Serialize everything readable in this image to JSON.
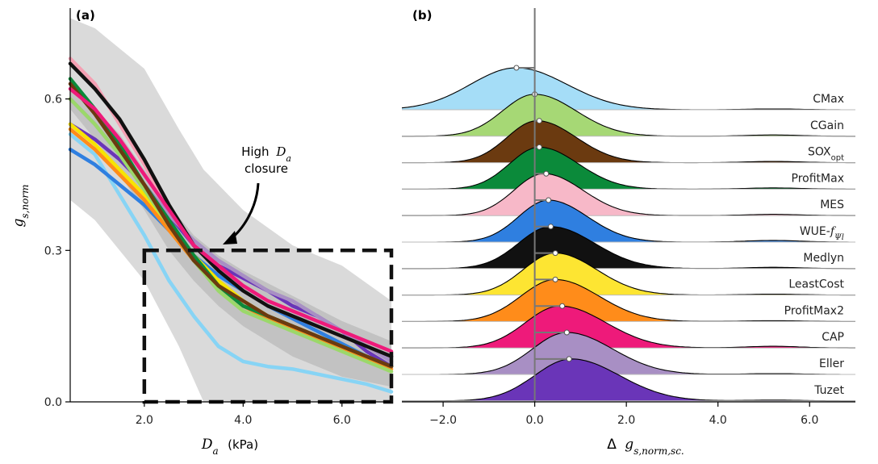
{
  "chart_data": [
    {
      "type": "line",
      "panel_label": "(a)",
      "xlabel": "D",
      "xlabel_sub": "a",
      "xlabel_unit": "(kPa)",
      "ylabel": "g",
      "ylabel_sub": "s,norm",
      "xlim": [
        0.5,
        7.0
      ],
      "ylim": [
        0.0,
        0.78
      ],
      "xticks": [
        2.0,
        4.0,
        6.0
      ],
      "xtick_labels": [
        "2.0",
        "4.0",
        "6.0"
      ],
      "yticks": [
        0.0,
        0.3,
        0.6
      ],
      "ytick_labels": [
        "0.0",
        "0.3",
        "0.6"
      ],
      "annotation": {
        "line1": "High",
        "var": "D",
        "var_sub": "a",
        "line2": "closure"
      },
      "box": {
        "x0": 2.0,
        "x1": 7.0,
        "y0": 0.0,
        "y1": 0.3
      },
      "bands": [
        {
          "color": "#d3d3d3",
          "x": [
            0.5,
            1.0,
            2.0,
            2.7,
            3.2,
            4.0,
            5.0,
            6.0,
            7.0
          ],
          "upper": [
            0.76,
            0.74,
            0.66,
            0.54,
            0.46,
            0.38,
            0.31,
            0.27,
            0.2
          ],
          "lower": [
            0.4,
            0.36,
            0.24,
            0.11,
            0.0,
            0.0,
            0.0,
            0.0,
            0.0
          ]
        },
        {
          "color": "#bdbdbd",
          "x": [
            0.5,
            1.0,
            1.5,
            2.0,
            2.5,
            3.0,
            3.5,
            4.0,
            5.0,
            6.0,
            7.0
          ],
          "upper": [
            0.64,
            0.58,
            0.53,
            0.46,
            0.39,
            0.33,
            0.29,
            0.26,
            0.21,
            0.16,
            0.12
          ],
          "lower": [
            0.58,
            0.52,
            0.45,
            0.38,
            0.3,
            0.24,
            0.19,
            0.15,
            0.09,
            0.05,
            0.03
          ]
        }
      ],
      "x": [
        0.5,
        1.0,
        1.5,
        2.0,
        2.5,
        3.0,
        3.5,
        4.0,
        4.5,
        5.0,
        5.5,
        6.0,
        6.5,
        7.0
      ],
      "series": [
        {
          "color": "#87d4f5",
          "values": [
            0.53,
            0.49,
            0.41,
            0.33,
            0.24,
            0.17,
            0.11,
            0.08,
            0.07,
            0.065,
            0.055,
            0.045,
            0.035,
            0.02
          ]
        },
        {
          "color": "#2f7fe0",
          "values": [
            0.5,
            0.47,
            0.43,
            0.39,
            0.34,
            0.29,
            0.25,
            0.22,
            0.19,
            0.165,
            0.14,
            0.115,
            0.09,
            0.07
          ]
        },
        {
          "color": "#6a35b8",
          "values": [
            0.55,
            0.52,
            0.48,
            0.43,
            0.37,
            0.31,
            0.27,
            0.245,
            0.22,
            0.19,
            0.17,
            0.14,
            0.1,
            0.07
          ]
        },
        {
          "color": "#a88fc4",
          "values": [
            0.6,
            0.55,
            0.49,
            0.43,
            0.37,
            0.32,
            0.28,
            0.25,
            0.22,
            0.2,
            0.17,
            0.14,
            0.11,
            0.08
          ]
        },
        {
          "color": "#f5a0b3",
          "values": [
            0.68,
            0.63,
            0.55,
            0.47,
            0.38,
            0.31,
            0.26,
            0.22,
            0.19,
            0.17,
            0.15,
            0.13,
            0.11,
            0.09
          ]
        },
        {
          "color": "#f7e400",
          "values": [
            0.55,
            0.51,
            0.46,
            0.41,
            0.35,
            0.29,
            0.24,
            0.2,
            0.17,
            0.15,
            0.13,
            0.11,
            0.09,
            0.07
          ]
        },
        {
          "color": "#ff8c1a",
          "values": [
            0.54,
            0.5,
            0.45,
            0.4,
            0.34,
            0.28,
            0.23,
            0.19,
            0.165,
            0.145,
            0.125,
            0.105,
            0.085,
            0.065
          ]
        },
        {
          "color": "#9bd86a",
          "values": [
            0.6,
            0.55,
            0.49,
            0.42,
            0.35,
            0.28,
            0.22,
            0.18,
            0.16,
            0.14,
            0.12,
            0.1,
            0.08,
            0.06
          ]
        },
        {
          "color": "#0b8a3a",
          "values": [
            0.64,
            0.58,
            0.51,
            0.43,
            0.36,
            0.29,
            0.23,
            0.19,
            0.17,
            0.15,
            0.13,
            0.11,
            0.09,
            0.07
          ]
        },
        {
          "color": "#6b3a10",
          "values": [
            0.63,
            0.57,
            0.5,
            0.43,
            0.35,
            0.28,
            0.23,
            0.2,
            0.17,
            0.15,
            0.13,
            0.11,
            0.09,
            0.07
          ]
        },
        {
          "color": "#111111",
          "values": [
            0.67,
            0.62,
            0.56,
            0.48,
            0.39,
            0.31,
            0.26,
            0.22,
            0.19,
            0.17,
            0.15,
            0.13,
            0.11,
            0.09
          ]
        },
        {
          "color": "#ee1a7a",
          "values": [
            0.62,
            0.58,
            0.52,
            0.45,
            0.38,
            0.31,
            0.27,
            0.23,
            0.2,
            0.18,
            0.16,
            0.14,
            0.12,
            0.1
          ]
        }
      ]
    },
    {
      "type": "ridgeline",
      "panel_label": "(b)",
      "xlabel": "Δ",
      "xlabel_var": "g",
      "xlabel_sub": "s,norm,sc.",
      "xlim": [
        -2.9,
        7.0
      ],
      "xticks": [
        -2.0,
        0.0,
        2.0,
        4.0,
        6.0
      ],
      "xtick_labels": [
        "−2.0",
        "0.0",
        "2.0",
        "4.0",
        "6.0"
      ],
      "zero_line": 0.0,
      "ridges": [
        {
          "label": "CMax",
          "color": "#a5ddf7",
          "median": -0.4,
          "mode": -0.4,
          "sd_left": 1.0,
          "sd_right": 1.1,
          "tail": 0.02
        },
        {
          "label": "CGain",
          "color": "#a6d875",
          "median": 0.0,
          "mode": 0.0,
          "sd_left": 0.7,
          "sd_right": 0.9,
          "tail": 0.03
        },
        {
          "label": "SOX",
          "label_sub": "opt",
          "color": "#6b3a10",
          "median": 0.1,
          "mode": 0.05,
          "sd_left": 0.65,
          "sd_right": 0.85,
          "tail": 0.03
        },
        {
          "label": "ProfitMax",
          "color": "#0b8a3a",
          "median": 0.1,
          "mode": 0.1,
          "sd_left": 0.65,
          "sd_right": 0.85,
          "tail": 0.03
        },
        {
          "label": "MES",
          "color": "#f7b8c8",
          "median": 0.25,
          "mode": 0.2,
          "sd_left": 0.65,
          "sd_right": 0.85,
          "tail": 0.03
        },
        {
          "label": "WUE-",
          "label_italic": "f",
          "label_sub": "Ψl",
          "color": "#2f7fe0",
          "median": 0.3,
          "mode": 0.3,
          "sd_left": 0.65,
          "sd_right": 0.85,
          "tail": 0.04
        },
        {
          "label": "Medlyn",
          "color": "#111111",
          "median": 0.35,
          "mode": 0.35,
          "sd_left": 0.7,
          "sd_right": 0.95,
          "tail": 0.03
        },
        {
          "label": "LeastCost",
          "color": "#fde532",
          "median": 0.45,
          "mode": 0.45,
          "sd_left": 0.7,
          "sd_right": 0.9,
          "tail": 0.02
        },
        {
          "label": "ProfitMax2",
          "color": "#ff8c1a",
          "median": 0.45,
          "mode": 0.45,
          "sd_left": 0.75,
          "sd_right": 0.95,
          "tail": 0.02
        },
        {
          "label": "CAP",
          "color": "#ee1a7a",
          "median": 0.6,
          "mode": 0.55,
          "sd_left": 0.75,
          "sd_right": 1.0,
          "tail": 0.04
        },
        {
          "label": "Eller",
          "color": "#a88fc4",
          "median": 0.7,
          "mode": 0.7,
          "sd_left": 0.75,
          "sd_right": 1.0,
          "tail": 0.02
        },
        {
          "label": "Tuzet",
          "color": "#6a35b8",
          "median": 0.75,
          "mode": 0.8,
          "sd_left": 0.8,
          "sd_right": 1.05,
          "tail": 0.02
        }
      ]
    }
  ]
}
